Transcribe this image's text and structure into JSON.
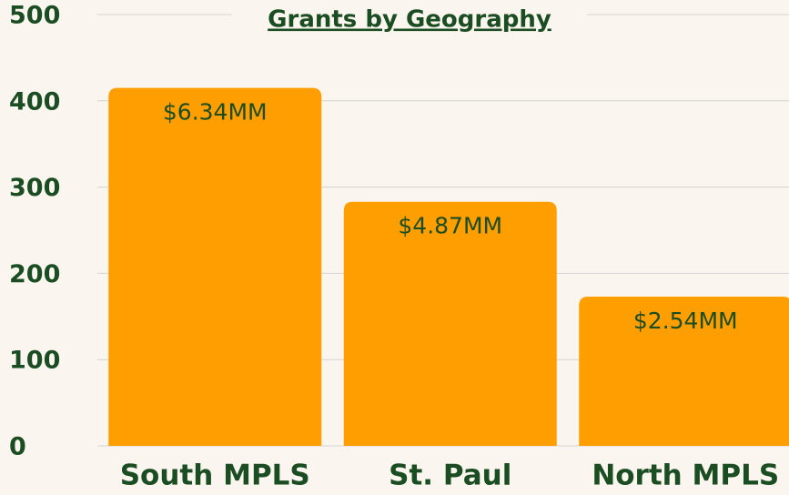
{
  "chart_data": {
    "type": "bar",
    "title": "Grants by Geography",
    "categories": [
      "South MPLS",
      "St. Paul",
      "North MPLS"
    ],
    "values": [
      415,
      283,
      173
    ],
    "amount_labels": [
      "$6.34MM",
      "$4.87MM",
      "$2.54MM"
    ],
    "color": "#ff9e00",
    "ylim": [
      0,
      500
    ],
    "yticks": [
      0,
      100,
      200,
      300,
      400,
      500
    ],
    "grid": true
  }
}
